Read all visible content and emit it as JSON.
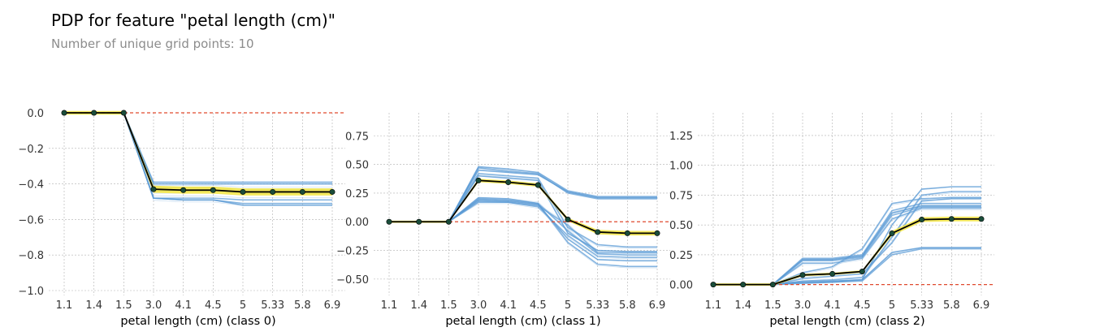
{
  "header": {
    "title": "PDP for feature \"petal length (cm)\"",
    "subtitle": "Number of unique grid points: 10"
  },
  "colors": {
    "average_line": "#000000",
    "average_marker": "#1a4d3a",
    "confidence_band": "#f5e84b",
    "ice_lines": "#5b9bd5",
    "zero_line": "#e04a2f",
    "grid": "#b0b0b0",
    "tick_text": "#333333"
  },
  "chart_data": [
    {
      "type": "line",
      "title": "",
      "xlabel": "petal length (cm) (class 0)",
      "ylabel": "",
      "x_tick_labels": [
        "1.1",
        "1.4",
        "1.5",
        "3.0",
        "4.1",
        "4.5",
        "5",
        "5.33",
        "5.8",
        "6.9"
      ],
      "y_ticks": [
        0.0,
        -0.2,
        -0.4,
        -0.6,
        -0.8,
        -1.0
      ],
      "y_tick_labels": [
        "0.0",
        "−0.2",
        "−0.4",
        "−0.6",
        "−0.8",
        "−1.0"
      ],
      "ylim": [
        -1.0,
        0.0
      ],
      "grid": true,
      "reference_line": 0,
      "series": [
        {
          "values": [
            0,
            0,
            0,
            -0.43,
            -0.435,
            -0.435,
            -0.445,
            -0.445,
            -0.445,
            -0.445
          ],
          "style": "average"
        },
        {
          "values": [
            0.01,
            0.01,
            0.01,
            -0.41,
            -0.415,
            -0.415,
            -0.425,
            -0.425,
            -0.425,
            -0.425
          ],
          "style": "band_upper"
        },
        {
          "values": [
            -0.01,
            -0.01,
            -0.01,
            -0.45,
            -0.455,
            -0.455,
            -0.465,
            -0.465,
            -0.465,
            -0.465
          ],
          "style": "band_lower"
        },
        {
          "values": [
            0,
            0,
            0,
            -0.39,
            -0.39,
            -0.39,
            -0.39,
            -0.39,
            -0.39,
            -0.39
          ],
          "style": "ice"
        },
        {
          "values": [
            0,
            0,
            0,
            -0.4,
            -0.4,
            -0.4,
            -0.4,
            -0.4,
            -0.4,
            -0.4
          ],
          "style": "ice"
        },
        {
          "values": [
            0,
            0,
            0,
            -0.42,
            -0.42,
            -0.42,
            -0.43,
            -0.43,
            -0.43,
            -0.43
          ],
          "style": "ice"
        },
        {
          "values": [
            0,
            0,
            0,
            -0.48,
            -0.49,
            -0.49,
            -0.51,
            -0.51,
            -0.51,
            -0.51
          ],
          "style": "ice"
        },
        {
          "values": [
            0,
            0,
            0,
            -0.48,
            -0.49,
            -0.49,
            -0.52,
            -0.52,
            -0.52,
            -0.52
          ],
          "style": "ice"
        },
        {
          "values": [
            0,
            0,
            0,
            -0.48,
            -0.48,
            -0.48,
            -0.49,
            -0.49,
            -0.49,
            -0.49
          ],
          "style": "ice"
        },
        {
          "values": [
            0,
            0,
            0,
            -0.44,
            -0.44,
            -0.44,
            -0.45,
            -0.45,
            -0.45,
            -0.45
          ],
          "style": "ice"
        }
      ]
    },
    {
      "type": "line",
      "title": "",
      "xlabel": "petal length (cm) (class 1)",
      "ylabel": "",
      "x_tick_labels": [
        "1.1",
        "1.4",
        "1.5",
        "3.0",
        "4.1",
        "4.5",
        "5",
        "5.33",
        "5.8",
        "6.9"
      ],
      "y_ticks": [
        0.75,
        0.5,
        0.25,
        0.0,
        -0.25,
        -0.5
      ],
      "y_tick_labels": [
        "0.75",
        "0.50",
        "0.25",
        "0.00",
        "−0.25",
        "−0.50"
      ],
      "ylim": [
        -0.6,
        0.95
      ],
      "grid": true,
      "reference_line": 0,
      "series": [
        {
          "values": [
            0,
            0,
            0,
            0.36,
            0.345,
            0.32,
            0.02,
            -0.09,
            -0.1,
            -0.1
          ],
          "style": "average"
        },
        {
          "values": [
            0.01,
            0.01,
            0.01,
            0.375,
            0.36,
            0.335,
            0.035,
            -0.07,
            -0.08,
            -0.08
          ],
          "style": "band_upper"
        },
        {
          "values": [
            -0.01,
            -0.01,
            -0.01,
            0.345,
            0.33,
            0.305,
            0.005,
            -0.11,
            -0.12,
            -0.12
          ],
          "style": "band_lower"
        },
        {
          "values": [
            0,
            0,
            0,
            0.48,
            0.46,
            0.43,
            0.27,
            0.22,
            0.22,
            0.22
          ],
          "style": "ice"
        },
        {
          "values": [
            0,
            0,
            0,
            0.45,
            0.43,
            0.41,
            0.26,
            0.21,
            0.21,
            0.21
          ],
          "style": "ice"
        },
        {
          "values": [
            0,
            0,
            0,
            0.47,
            0.44,
            0.42,
            0.25,
            0.2,
            0.2,
            0.2
          ],
          "style": "ice"
        },
        {
          "values": [
            0,
            0,
            0,
            0.42,
            0.4,
            0.38,
            -0.05,
            -0.2,
            -0.22,
            -0.22
          ],
          "style": "ice"
        },
        {
          "values": [
            0,
            0,
            0,
            0.4,
            0.38,
            0.36,
            -0.1,
            -0.25,
            -0.26,
            -0.26
          ],
          "style": "ice"
        },
        {
          "values": [
            0,
            0,
            0,
            0.2,
            0.19,
            0.16,
            -0.08,
            -0.28,
            -0.29,
            -0.29
          ],
          "style": "ice"
        },
        {
          "values": [
            0,
            0,
            0,
            0.17,
            0.17,
            0.13,
            -0.12,
            -0.3,
            -0.31,
            -0.31
          ],
          "style": "ice"
        },
        {
          "values": [
            0,
            0,
            0,
            0.19,
            0.18,
            0.15,
            -0.15,
            -0.33,
            -0.34,
            -0.34
          ],
          "style": "ice"
        },
        {
          "values": [
            0,
            0,
            0,
            0.18,
            0.17,
            0.14,
            -0.03,
            -0.27,
            -0.27,
            -0.27
          ],
          "style": "ice"
        },
        {
          "values": [
            0,
            0,
            0,
            0.21,
            0.2,
            0.16,
            -0.18,
            -0.37,
            -0.39,
            -0.39
          ],
          "style": "ice"
        }
      ]
    },
    {
      "type": "line",
      "title": "",
      "xlabel": "petal length (cm) (class 2)",
      "ylabel": "",
      "x_tick_labels": [
        "1.1",
        "1.4",
        "1.5",
        "3.0",
        "4.1",
        "4.5",
        "5",
        "5.33",
        "5.8",
        "6.9"
      ],
      "y_ticks": [
        1.25,
        1.0,
        0.75,
        0.5,
        0.25,
        0.0
      ],
      "y_tick_labels": [
        "1.25",
        "1.00",
        "0.75",
        "0.50",
        "0.25",
        "0.00"
      ],
      "ylim": [
        -0.05,
        1.44
      ],
      "grid": true,
      "reference_line": 0,
      "series": [
        {
          "values": [
            0,
            0,
            0,
            0.08,
            0.09,
            0.11,
            0.43,
            0.545,
            0.55,
            0.55
          ],
          "style": "average"
        },
        {
          "values": [
            0.01,
            0.01,
            0.01,
            0.09,
            0.1,
            0.12,
            0.45,
            0.565,
            0.57,
            0.57
          ],
          "style": "band_upper"
        },
        {
          "values": [
            -0.01,
            -0.01,
            -0.01,
            0.07,
            0.08,
            0.1,
            0.41,
            0.525,
            0.53,
            0.53
          ],
          "style": "band_lower"
        },
        {
          "values": [
            0,
            0,
            0,
            0.22,
            0.22,
            0.25,
            0.62,
            0.68,
            0.68,
            0.68
          ],
          "style": "ice"
        },
        {
          "values": [
            0,
            0,
            0,
            0.21,
            0.21,
            0.24,
            0.6,
            0.66,
            0.66,
            0.66
          ],
          "style": "ice"
        },
        {
          "values": [
            0,
            0,
            0,
            0.2,
            0.2,
            0.23,
            0.58,
            0.65,
            0.65,
            0.65
          ],
          "style": "ice"
        },
        {
          "values": [
            0,
            0,
            0,
            0.18,
            0.18,
            0.22,
            0.55,
            0.64,
            0.64,
            0.64
          ],
          "style": "ice"
        },
        {
          "values": [
            0,
            0,
            0,
            0.02,
            0.03,
            0.04,
            0.27,
            0.31,
            0.31,
            0.31
          ],
          "style": "ice"
        },
        {
          "values": [
            0,
            0,
            0,
            0.02,
            0.02,
            0.03,
            0.25,
            0.3,
            0.3,
            0.3
          ],
          "style": "ice"
        },
        {
          "values": [
            0,
            0,
            0,
            0.03,
            0.04,
            0.06,
            0.4,
            0.75,
            0.78,
            0.78
          ],
          "style": "ice"
        },
        {
          "values": [
            0,
            0,
            0,
            0.01,
            0.02,
            0.04,
            0.5,
            0.8,
            0.82,
            0.82
          ],
          "style": "ice"
        },
        {
          "values": [
            0,
            0,
            0,
            0.05,
            0.07,
            0.09,
            0.35,
            0.7,
            0.72,
            0.72
          ],
          "style": "ice"
        },
        {
          "values": [
            0,
            0,
            0,
            0.1,
            0.15,
            0.3,
            0.68,
            0.72,
            0.73,
            0.73
          ],
          "style": "ice"
        }
      ]
    }
  ]
}
